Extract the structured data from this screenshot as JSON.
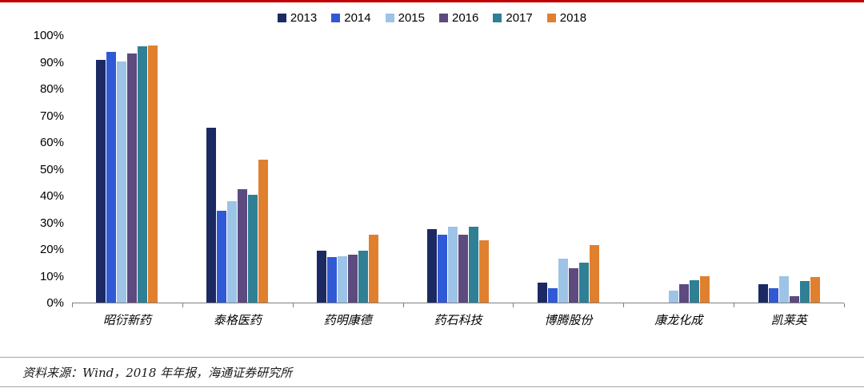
{
  "page": {
    "top_border_color": "#c00000"
  },
  "chart_data": {
    "type": "bar",
    "title": "",
    "xlabel": "",
    "ylabel": "",
    "categories": [
      "昭衍新药",
      "泰格医药",
      "药明康德",
      "药石科技",
      "博腾股份",
      "康龙化成",
      "凯莱英"
    ],
    "series": [
      {
        "name": "2013",
        "color": "#1b2a62",
        "values": [
          91,
          65.5,
          19.5,
          27.5,
          7.5,
          0,
          7
        ]
      },
      {
        "name": "2014",
        "color": "#3059d6",
        "values": [
          94,
          34.5,
          17,
          25.5,
          5.5,
          0,
          5.5
        ]
      },
      {
        "name": "2015",
        "color": "#9dc3e6",
        "values": [
          90.5,
          38,
          17.5,
          28.5,
          16.5,
          4.5,
          10
        ]
      },
      {
        "name": "2016",
        "color": "#5d4a7e",
        "values": [
          93.5,
          42.5,
          18,
          25.5,
          13,
          7,
          2.5
        ]
      },
      {
        "name": "2017",
        "color": "#2f7f95",
        "values": [
          96,
          40.5,
          19.5,
          28.5,
          15,
          8.5,
          8
        ]
      },
      {
        "name": "2018",
        "color": "#e0802e",
        "values": [
          96.5,
          53.5,
          25.5,
          23.5,
          21.5,
          10,
          9.5
        ]
      }
    ],
    "ylim": [
      0,
      100
    ],
    "ytick_step": 10,
    "ytick_suffix": "%",
    "grid": false,
    "legend_position": "top"
  },
  "footer": {
    "source_text": "资料来源：Wind，2018 年年报，海通证券研究所"
  }
}
